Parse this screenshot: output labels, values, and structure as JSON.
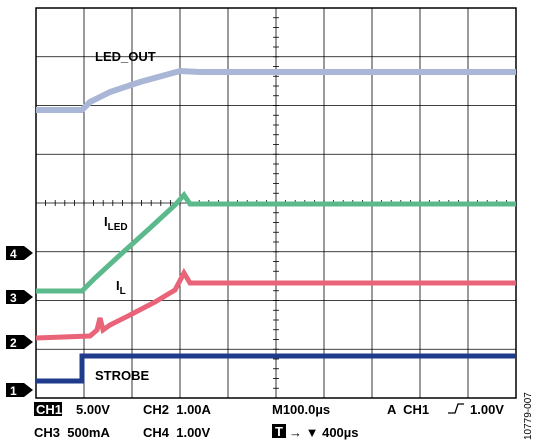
{
  "traces": {
    "led_out": "LED_OUT",
    "i_led": {
      "main": "I",
      "sub": "LED"
    },
    "i_l": {
      "main": "I",
      "sub": "L"
    },
    "strobe": "STROBE"
  },
  "markers": [
    "1",
    "2",
    "3",
    "4"
  ],
  "status": {
    "row1": {
      "ch1": "CH1",
      "ch1_scale": "5.00V",
      "ch2": "CH2  1.00A",
      "time": "M100.0µs",
      "trigger": "A  CH1",
      "trigger_level": "1.00V"
    },
    "row2": {
      "ch3": "CH3  500mA",
      "ch4": "CH4  1.00V",
      "t": "T",
      "position": "→ ▼ 400µs"
    }
  },
  "figure_id": "10779-007"
}
